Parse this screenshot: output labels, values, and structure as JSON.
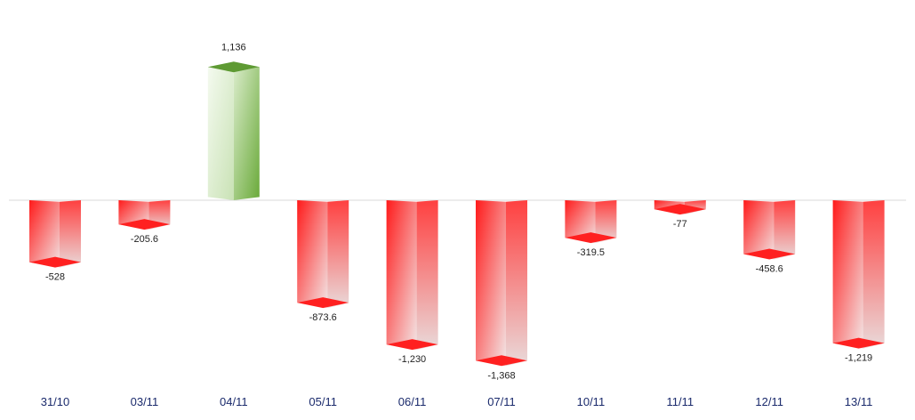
{
  "chart_data": {
    "type": "bar",
    "categories": [
      "31/10",
      "03/11",
      "04/11",
      "05/11",
      "06/11",
      "07/11",
      "10/11",
      "11/11",
      "12/11",
      "13/11"
    ],
    "values": [
      -528,
      -205.6,
      1136,
      -873.6,
      -1230,
      -1368,
      -319.5,
      -77,
      -458.6,
      -1219
    ],
    "value_labels": [
      "-528",
      "-205.6",
      "1,136",
      "-873.6",
      "-1,230",
      "-1,368",
      "-319.5",
      "-77",
      "-458.6",
      "-1,219"
    ],
    "title": "",
    "xlabel": "",
    "ylabel": "",
    "ylim": [
      -1368,
      1136
    ],
    "grid": false,
    "legend": "none",
    "colors": {
      "positive_front": "#6aaa3a",
      "positive_front_light": "#eef6e8",
      "positive_side": "#4e8a25",
      "negative_front": "#ff1a1a",
      "negative_front_light": "#f2e6e6",
      "negative_side": "#e01010",
      "baseline": "#d9d9d9",
      "label_text": "#222222",
      "axis_text": "#1a2a6c"
    }
  }
}
